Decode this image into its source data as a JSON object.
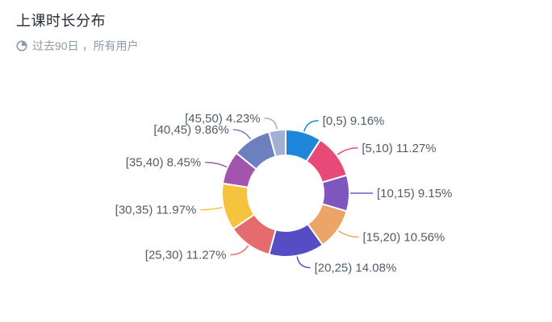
{
  "header": {
    "title": "上课时长分布",
    "subtitle": "过去90日 ，所有用户",
    "subtitle_icon": "clock-pie-icon"
  },
  "colors": {
    "title_text": "#262d36",
    "subtitle_text": "#909aa8",
    "label_text": "#525c66",
    "background": "#ffffff",
    "segment_border": "#ffffff"
  },
  "chart_data": {
    "type": "pie",
    "donut": true,
    "title": "上课时长分布",
    "subtitle": "过去90日 ，所有用户",
    "legend_position": "none",
    "labels_on": true,
    "label_format": "{category} {value}%",
    "start_angle_deg": 0,
    "clockwise": true,
    "categories": [
      "[0,5)",
      "[5,10)",
      "[10,15)",
      "[15,20)",
      "[20,25)",
      "[25,30)",
      "[30,35)",
      "[35,40)",
      "[40,45)",
      "[45,50)"
    ],
    "values": [
      9.16,
      11.27,
      9.15,
      10.56,
      14.08,
      11.27,
      11.97,
      8.45,
      9.86,
      4.23
    ],
    "unit": "%",
    "colors": [
      "#1f87da",
      "#e84a78",
      "#7f55c0",
      "#eda468",
      "#564cc6",
      "#e56b6e",
      "#f6c33e",
      "#a355ae",
      "#6c80bf",
      "#a2b0d6"
    ]
  }
}
